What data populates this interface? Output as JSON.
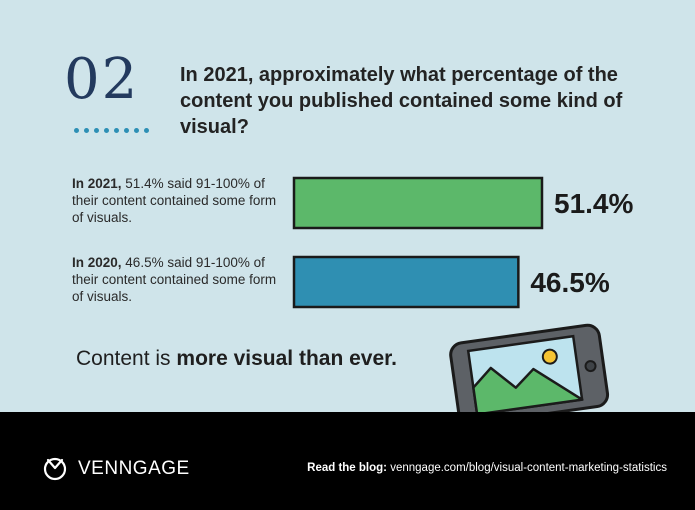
{
  "header": {
    "number": "02",
    "question": "In 2021, approximately what percentage of the content you published contained some kind of visual?"
  },
  "stats": [
    {
      "year": "In 2021,",
      "text": "51.4% said 91-100% of their content contained some form of visuals."
    },
    {
      "year": "In 2020,",
      "text": "46.5% said 91-100% of their content contained some form of visuals."
    }
  ],
  "tagline": {
    "plain": "Content is",
    "bold": "more visual than ever."
  },
  "footer": {
    "logo": "VENNGAGE",
    "read_label": "Read the blog:",
    "read_url": "venngage.com/blog/visual-content-marketing-statistics"
  },
  "colors": {
    "bar_2021": "#5cb86a",
    "bar_2020": "#2f8fb2",
    "background": "#cfe4ea",
    "footer": "#000000"
  },
  "icons": [
    "clock-logo-icon",
    "phone-landscape-icon"
  ],
  "chart_data": {
    "type": "bar",
    "orientation": "horizontal",
    "categories": [
      "2021",
      "2020"
    ],
    "values": [
      51.4,
      46.5
    ],
    "value_labels": [
      "51.4%",
      "46.5%"
    ],
    "unit": "%",
    "title": "",
    "xlabel": "",
    "ylabel": "",
    "grid": false
  }
}
